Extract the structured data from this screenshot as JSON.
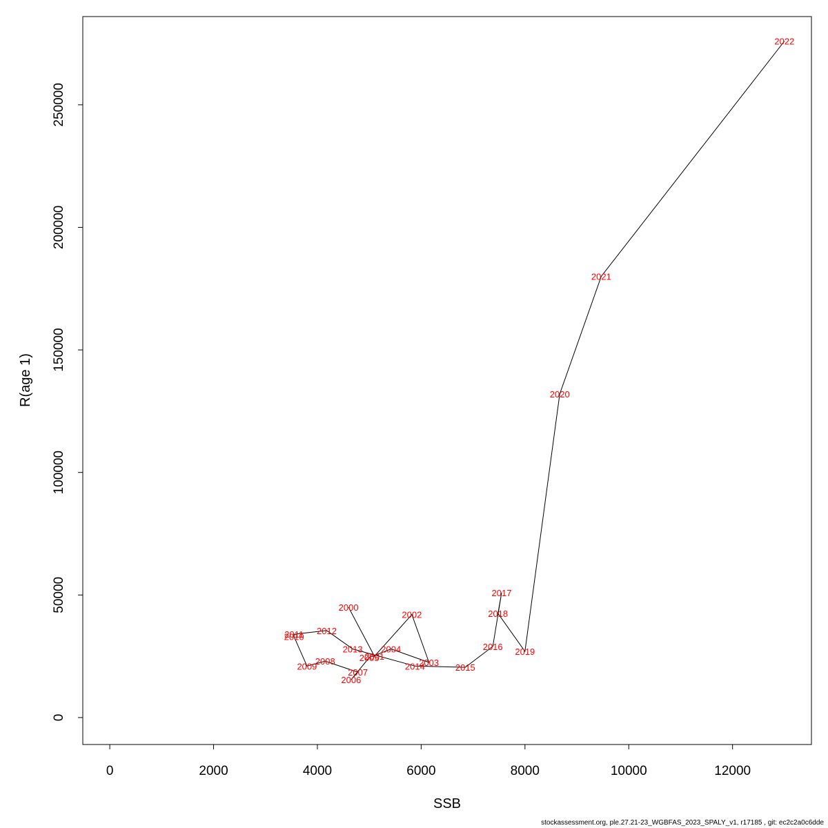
{
  "chart_data": {
    "type": "line",
    "xlabel": "SSB",
    "ylabel": "R(age 1)",
    "xlim": [
      -520,
      13520
    ],
    "ylim": [
      -11000,
      286000
    ],
    "x_ticks": [
      0,
      2000,
      4000,
      6000,
      8000,
      10000,
      12000
    ],
    "y_ticks": [
      0,
      50000,
      100000,
      150000,
      200000,
      250000
    ],
    "grid": false,
    "line_color": "#000000",
    "label_color": "#ff0000",
    "points": [
      {
        "year": "2000",
        "ssb": 4600,
        "r": 45000
      },
      {
        "year": "2001",
        "ssb": 5100,
        "r": 25000
      },
      {
        "year": "2002",
        "ssb": 5820,
        "r": 42000
      },
      {
        "year": "2003",
        "ssb": 6150,
        "r": 22500
      },
      {
        "year": "2004",
        "ssb": 5420,
        "r": 28000
      },
      {
        "year": "2005",
        "ssb": 5000,
        "r": 24500
      },
      {
        "year": "2006",
        "ssb": 4650,
        "r": 15500
      },
      {
        "year": "2007",
        "ssb": 4780,
        "r": 18500
      },
      {
        "year": "2008",
        "ssb": 4150,
        "r": 23000
      },
      {
        "year": "2009",
        "ssb": 3800,
        "r": 21000
      },
      {
        "year": "2010",
        "ssb": 3550,
        "r": 33000
      },
      {
        "year": "2011",
        "ssb": 3550,
        "r": 34000
      },
      {
        "year": "2012",
        "ssb": 4180,
        "r": 35500
      },
      {
        "year": "2013",
        "ssb": 4680,
        "r": 28000
      },
      {
        "year": "2014",
        "ssb": 5880,
        "r": 21000
      },
      {
        "year": "2015",
        "ssb": 6850,
        "r": 20500
      },
      {
        "year": "2016",
        "ssb": 7380,
        "r": 29000
      },
      {
        "year": "2017",
        "ssb": 7550,
        "r": 51000
      },
      {
        "year": "2018",
        "ssb": 7480,
        "r": 42500
      },
      {
        "year": "2019",
        "ssb": 8000,
        "r": 27000
      },
      {
        "year": "2020",
        "ssb": 8670,
        "r": 132000
      },
      {
        "year": "2021",
        "ssb": 9470,
        "r": 180000
      },
      {
        "year": "2022",
        "ssb": 13000,
        "r": 276000
      }
    ]
  },
  "footer": {
    "text": "stockassessment.org, ple.27.21-23_WGBFAS_2023_SPALY_v1, r17185 , git: ec2c2a0c6dde"
  }
}
